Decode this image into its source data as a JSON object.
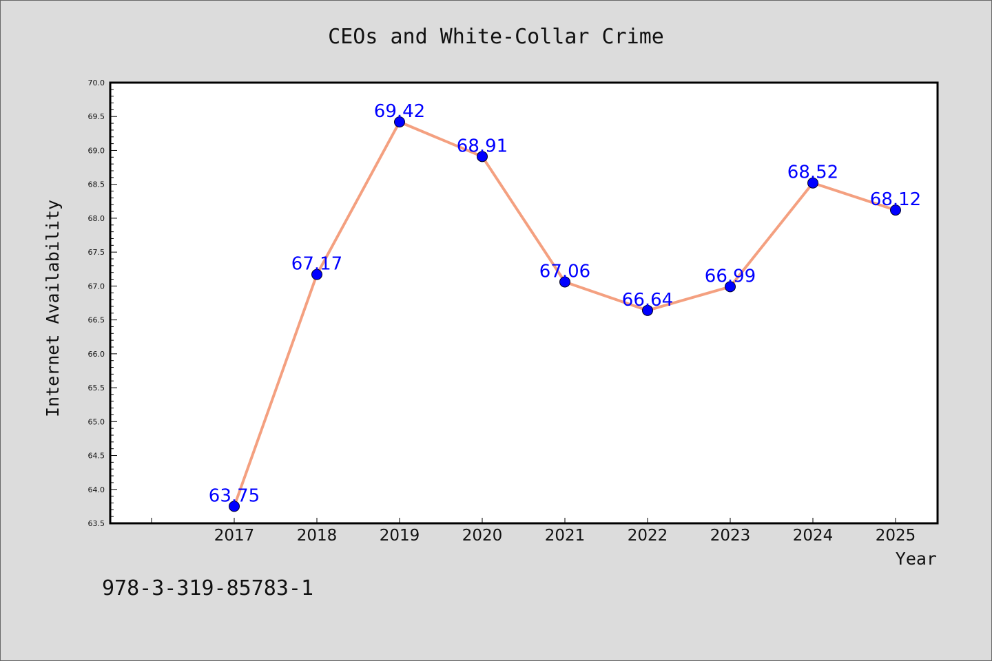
{
  "chart_data": {
    "type": "line",
    "title": "CEOs and White-Collar Crime",
    "xlabel": "Year",
    "ylabel": "Internet Availability",
    "x": [
      "2017",
      "2018",
      "2019",
      "2020",
      "2021",
      "2022",
      "2023",
      "2024",
      "2025"
    ],
    "series": [
      {
        "values": [
          63.75,
          67.17,
          69.42,
          68.91,
          67.06,
          66.64,
          66.99,
          68.52,
          68.12
        ],
        "labels": [
          "63.75",
          "67.17",
          "69.42",
          "68.91",
          "67.06",
          "66.64",
          "66.99",
          "68.52",
          "68.12"
        ]
      }
    ],
    "ylim": [
      63.5,
      70.0
    ],
    "yticks": [
      "63.5",
      "64.0",
      "64.5",
      "65.0",
      "65.5",
      "66.0",
      "66.5",
      "67.0",
      "67.5",
      "68.0",
      "68.5",
      "69.0",
      "69.5",
      "70.0"
    ],
    "grid": false,
    "legend": "none",
    "colors": {
      "line": "#f4a080",
      "marker": "#0000ff",
      "data_label": "#0000ff",
      "background": "#dcdcdc",
      "plot_area": "#ffffff"
    }
  },
  "footer": {
    "isbn": "978-3-319-85783-1"
  }
}
